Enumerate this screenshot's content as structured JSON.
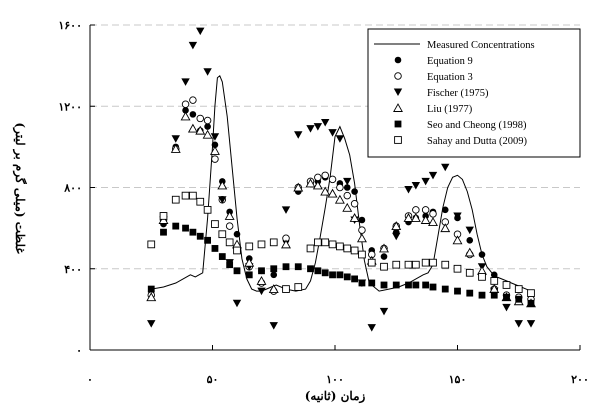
{
  "chart_data": {
    "type": "scatter",
    "xlabel": "زمان (ثانیه)",
    "ylabel": "(غلظت (میلی گرم بر لیتر",
    "xlim": [
      0,
      200
    ],
    "ylim": [
      0,
      1600
    ],
    "xticks": [
      0,
      50,
      100,
      150,
      200
    ],
    "yticks": [
      0,
      400,
      800,
      1200,
      1600
    ],
    "xtick_labels": [
      "۰",
      "۵۰",
      "۱۰۰",
      "۱۵۰",
      "۲۰۰"
    ],
    "ytick_labels": [
      "۰",
      "۴۰۰",
      "۸۰۰",
      "۱۲۰۰",
      "۱۶۰۰"
    ],
    "grid": "horizontal dashed",
    "legend_position": "top-right",
    "series": [
      {
        "name": "Measured Concentrations",
        "marker": "line",
        "x": [
          25,
          30,
          35,
          38,
          41,
          43,
          46,
          48,
          50,
          51,
          52,
          53,
          54,
          56,
          58,
          60,
          62,
          64,
          66,
          68,
          70,
          72,
          74,
          76,
          80,
          84,
          88,
          90,
          92,
          94,
          96,
          98,
          100,
          102,
          104,
          106,
          108,
          110,
          112,
          114,
          118,
          122,
          126,
          130,
          133,
          136,
          138,
          140,
          142,
          144,
          146,
          148,
          150,
          152,
          154,
          156,
          158,
          160,
          162,
          164,
          166,
          168,
          170,
          172,
          174,
          176,
          178,
          180
        ],
        "y": [
          300,
          310,
          330,
          350,
          370,
          360,
          380,
          650,
          1000,
          1200,
          1340,
          1350,
          1320,
          1150,
          900,
          650,
          450,
          350,
          300,
          290,
          290,
          300,
          310,
          320,
          300,
          290,
          300,
          340,
          430,
          560,
          700,
          850,
          1050,
          1100,
          1040,
          960,
          820,
          620,
          440,
          330,
          290,
          300,
          310,
          330,
          350,
          370,
          380,
          420,
          560,
          700,
          800,
          850,
          860,
          840,
          780,
          690,
          570,
          470,
          410,
          380,
          360,
          350,
          340,
          330,
          320,
          310,
          300,
          290
        ]
      },
      {
        "name": "Equation 9",
        "marker": "filled-circle",
        "x": [
          25,
          30,
          35,
          39,
          42,
          45,
          48,
          51,
          54,
          57,
          60,
          65,
          70,
          75,
          80,
          85,
          90,
          93,
          96,
          99,
          102,
          105,
          108,
          111,
          115,
          120,
          125,
          130,
          133,
          137,
          140,
          145,
          150,
          155,
          160,
          165,
          170,
          175,
          180
        ],
        "y": [
          290,
          620,
          1000,
          1180,
          1160,
          1080,
          1100,
          1010,
          830,
          680,
          570,
          450,
          390,
          370,
          540,
          780,
          820,
          830,
          850,
          840,
          820,
          800,
          780,
          640,
          490,
          460,
          580,
          630,
          650,
          660,
          680,
          690,
          650,
          540,
          470,
          370,
          320,
          300,
          280
        ]
      },
      {
        "name": "Equation 3",
        "marker": "open-circle",
        "x": [
          25,
          30,
          35,
          39,
          42,
          45,
          48,
          51,
          54,
          57,
          60,
          65,
          70,
          75,
          80,
          85,
          90,
          93,
          96,
          99,
          102,
          105,
          108,
          111,
          115,
          120,
          125,
          130,
          133,
          137,
          140,
          145,
          150,
          155,
          160,
          165,
          170,
          175,
          180
        ],
        "y": [
          270,
          640,
          990,
          1210,
          1230,
          1140,
          1130,
          940,
          740,
          610,
          500,
          410,
          330,
          290,
          550,
          800,
          830,
          850,
          860,
          840,
          800,
          760,
          720,
          590,
          470,
          500,
          610,
          660,
          690,
          690,
          670,
          630,
          570,
          470,
          370,
          300,
          270,
          260,
          250
        ]
      },
      {
        "name": "Fischer (1975)",
        "marker": "filled-triangle-down",
        "x": [
          25,
          30,
          35,
          39,
          42,
          45,
          48,
          51,
          54,
          57,
          60,
          65,
          70,
          75,
          80,
          85,
          90,
          93,
          96,
          99,
          102,
          105,
          108,
          111,
          115,
          120,
          125,
          130,
          133,
          137,
          140,
          145,
          150,
          155,
          160,
          165,
          170,
          175,
          180
        ],
        "y": [
          130,
          640,
          1040,
          1320,
          1500,
          1570,
          1370,
          1050,
          740,
          430,
          230,
          410,
          290,
          120,
          690,
          1060,
          1090,
          1100,
          1120,
          1070,
          1040,
          830,
          640,
          330,
          110,
          190,
          560,
          790,
          810,
          830,
          860,
          900,
          660,
          590,
          410,
          290,
          210,
          130,
          130
        ]
      },
      {
        "name": "Liu (1977)",
        "marker": "open-triangle-up",
        "x": [
          25,
          30,
          35,
          39,
          42,
          45,
          48,
          51,
          54,
          57,
          60,
          65,
          70,
          75,
          80,
          85,
          90,
          93,
          96,
          99,
          102,
          105,
          108,
          111,
          115,
          120,
          125,
          130,
          133,
          137,
          140,
          145,
          150,
          155,
          160,
          165,
          170,
          175,
          180
        ],
        "y": [
          260,
          640,
          990,
          1150,
          1090,
          1080,
          1060,
          980,
          810,
          660,
          520,
          430,
          340,
          300,
          520,
          800,
          820,
          810,
          780,
          770,
          740,
          700,
          650,
          550,
          440,
          500,
          610,
          650,
          650,
          640,
          630,
          600,
          540,
          480,
          390,
          300,
          260,
          240,
          230
        ]
      },
      {
        "name": "Seo and Cheong (1998)",
        "marker": "filled-square",
        "x": [
          25,
          30,
          35,
          39,
          42,
          45,
          48,
          51,
          54,
          57,
          60,
          65,
          70,
          75,
          80,
          85,
          90,
          93,
          96,
          99,
          102,
          105,
          108,
          111,
          115,
          120,
          125,
          130,
          133,
          137,
          140,
          145,
          150,
          155,
          160,
          165,
          170,
          175,
          180
        ],
        "y": [
          300,
          580,
          610,
          600,
          580,
          560,
          540,
          500,
          460,
          420,
          390,
          370,
          390,
          400,
          410,
          410,
          400,
          390,
          380,
          370,
          370,
          360,
          350,
          330,
          330,
          320,
          320,
          320,
          320,
          320,
          310,
          300,
          290,
          280,
          270,
          270,
          260,
          250,
          230
        ]
      },
      {
        "name": "Sahay and Dutta (2009)",
        "marker": "open-square",
        "x": [
          25,
          30,
          35,
          39,
          42,
          45,
          48,
          51,
          54,
          57,
          60,
          65,
          70,
          75,
          80,
          85,
          90,
          93,
          96,
          99,
          102,
          105,
          108,
          111,
          115,
          120,
          125,
          130,
          133,
          137,
          140,
          145,
          150,
          155,
          160,
          165,
          170,
          175,
          180
        ],
        "y": [
          520,
          660,
          740,
          760,
          760,
          730,
          690,
          620,
          570,
          530,
          490,
          510,
          520,
          530,
          300,
          310,
          500,
          530,
          530,
          520,
          510,
          500,
          490,
          470,
          430,
          410,
          420,
          420,
          420,
          430,
          430,
          420,
          400,
          380,
          360,
          340,
          320,
          300,
          280
        ]
      }
    ]
  }
}
